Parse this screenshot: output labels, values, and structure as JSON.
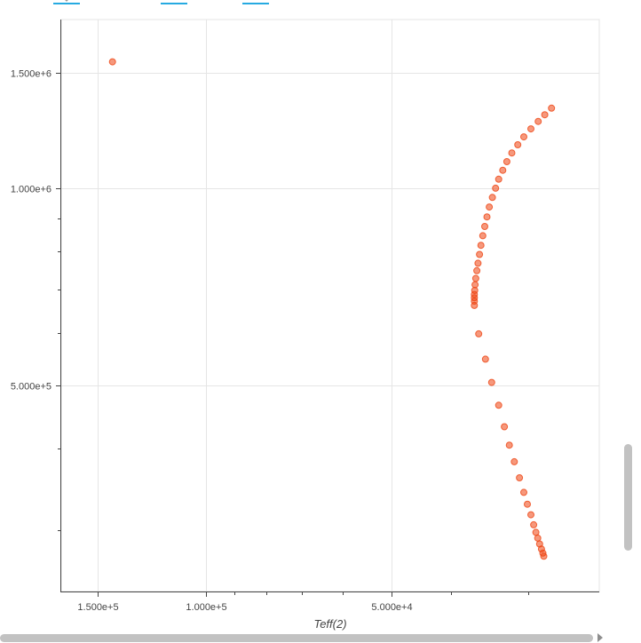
{
  "toolbar": {
    "tools": [
      {
        "icon": "pan-icon",
        "active": true
      },
      {
        "icon": "wheel-zoom-icon",
        "active": false
      },
      {
        "icon": "box-zoom-icon",
        "active": false
      },
      {
        "icon": "lasso-select-icon",
        "active": false
      },
      {
        "icon": "hover-icon",
        "active": true
      },
      {
        "icon": "save-icon",
        "active": false
      },
      {
        "icon": "reset-icon",
        "active": false
      },
      {
        "icon": "crosshair-icon",
        "active": true
      },
      {
        "icon": "bokeh-logo-icon",
        "active": false
      }
    ],
    "accent_color": "#26aae1"
  },
  "chart_data": {
    "type": "scatter",
    "title": "",
    "xlabel": "Teff(2)",
    "ylabel": "",
    "x_scale": "log",
    "y_scale": "log",
    "x_reversed": true,
    "xlim": [
      172000,
      23000
    ],
    "ylim": [
      242000,
      1810000
    ],
    "x_ticks": [
      {
        "value": 150000,
        "label": "1.500e+5"
      },
      {
        "value": 100000,
        "label": "1.000e+5"
      },
      {
        "value": 50000,
        "label": "5.000e+4"
      }
    ],
    "y_ticks": [
      {
        "value": 1500000,
        "label": "1.500e+6"
      },
      {
        "value": 1000000,
        "label": "1.000e+6"
      },
      {
        "value": 500000,
        "label": "5.000e+5"
      }
    ],
    "grid": true,
    "marker_color": "#ee4411",
    "series": [
      {
        "points": [
          [
            142000,
            1560000
          ],
          [
            27500,
            1325000
          ],
          [
            28200,
            1295000
          ],
          [
            28900,
            1265000
          ],
          [
            29700,
            1232000
          ],
          [
            30500,
            1198000
          ],
          [
            31200,
            1165000
          ],
          [
            31900,
            1132000
          ],
          [
            32500,
            1098000
          ],
          [
            33000,
            1065000
          ],
          [
            33500,
            1032000
          ],
          [
            33900,
            1000000
          ],
          [
            34300,
            968000
          ],
          [
            34700,
            936000
          ],
          [
            35000,
            904000
          ],
          [
            35300,
            874000
          ],
          [
            35550,
            846000
          ],
          [
            35800,
            818000
          ],
          [
            36000,
            792000
          ],
          [
            36200,
            768000
          ],
          [
            36350,
            748000
          ],
          [
            36500,
            728000
          ],
          [
            36600,
            712000
          ],
          [
            36650,
            698000
          ],
          [
            36700,
            688000
          ],
          [
            36700,
            680000
          ],
          [
            36700,
            672000
          ],
          [
            36700,
            662000
          ],
          [
            36100,
            599000
          ],
          [
            35200,
            548000
          ],
          [
            34400,
            505000
          ],
          [
            33500,
            466000
          ],
          [
            32800,
            432000
          ],
          [
            32200,
            405000
          ],
          [
            31600,
            382000
          ],
          [
            31000,
            361000
          ],
          [
            30500,
            343000
          ],
          [
            30100,
            329000
          ],
          [
            29700,
            317000
          ],
          [
            29400,
            306000
          ],
          [
            29150,
            298000
          ],
          [
            28950,
            292000
          ],
          [
            28750,
            286000
          ],
          [
            28550,
            281000
          ],
          [
            28400,
            277000
          ],
          [
            28300,
            274000
          ]
        ]
      }
    ]
  }
}
